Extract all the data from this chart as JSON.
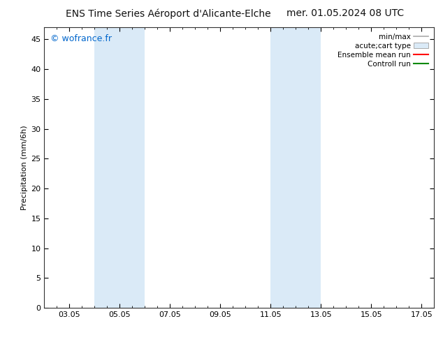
{
  "title_left": "ENS Time Series Aéroport d'Alicante-Elche",
  "title_right": "mer. 01.05.2024 08 UTC",
  "ylabel": "Precipitation (mm/6h)",
  "watermark": "© wofrance.fr",
  "watermark_color": "#0066cc",
  "xlim_start": 2.0,
  "xlim_end": 17.5,
  "ylim_min": 0,
  "ylim_max": 47,
  "yticks": [
    0,
    5,
    10,
    15,
    20,
    25,
    30,
    35,
    40,
    45
  ],
  "xtick_labels": [
    "03.05",
    "05.05",
    "07.05",
    "09.05",
    "11.05",
    "13.05",
    "15.05",
    "17.05"
  ],
  "xtick_positions": [
    3.0,
    5.0,
    7.0,
    9.0,
    11.0,
    13.0,
    15.0,
    17.0
  ],
  "shaded_regions": [
    {
      "x_start": 4.0,
      "x_end": 6.0
    },
    {
      "x_start": 11.0,
      "x_end": 13.0
    }
  ],
  "shade_color": "#daeaf7",
  "bg_color": "#ffffff",
  "legend_entries": [
    {
      "label": "min/max",
      "type": "line",
      "color": "#aaaaaa",
      "lw": 1.2
    },
    {
      "label": "acute;cart type",
      "type": "box",
      "facecolor": "#daeaf7",
      "edgecolor": "#aaaaaa"
    },
    {
      "label": "Ensemble mean run",
      "type": "line",
      "color": "#ff0000",
      "lw": 1.5
    },
    {
      "label": "Controll run",
      "type": "line",
      "color": "#008800",
      "lw": 1.5
    }
  ],
  "title_fontsize": 10,
  "axis_label_fontsize": 8,
  "tick_fontsize": 8,
  "watermark_fontsize": 9,
  "legend_fontsize": 7.5
}
